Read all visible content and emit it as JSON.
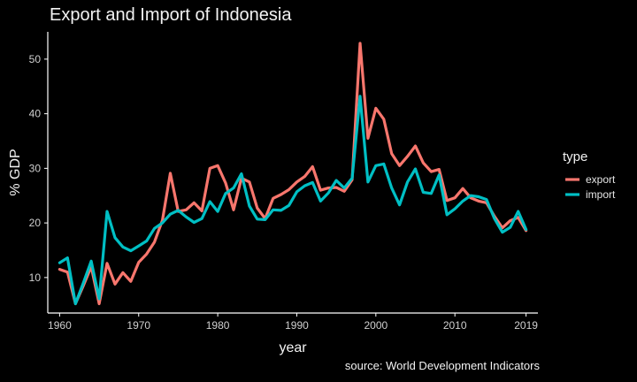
{
  "chart_data": {
    "type": "line",
    "title": "Export and Import of Indonesia",
    "xlabel": "year",
    "ylabel": "% GDP",
    "caption": "source: World Development Indicators",
    "legend_title": "type",
    "legend_position": "right",
    "grid": false,
    "xlim": [
      1958.5,
      2020.5
    ],
    "ylim": [
      3.5,
      55
    ],
    "x_ticks": [
      1960,
      1970,
      1980,
      1990,
      2000,
      2010,
      2019
    ],
    "y_ticks": [
      10,
      20,
      30,
      40,
      50
    ],
    "x": [
      1960,
      1961,
      1962,
      1963,
      1964,
      1965,
      1966,
      1967,
      1968,
      1969,
      1970,
      1971,
      1972,
      1973,
      1974,
      1975,
      1976,
      1977,
      1978,
      1979,
      1980,
      1981,
      1982,
      1983,
      1984,
      1985,
      1986,
      1987,
      1988,
      1989,
      1990,
      1991,
      1992,
      1993,
      1994,
      1995,
      1996,
      1997,
      1998,
      1999,
      2000,
      2001,
      2002,
      2003,
      2004,
      2005,
      2006,
      2007,
      2008,
      2009,
      2010,
      2011,
      2012,
      2013,
      2014,
      2015,
      2016,
      2017,
      2018,
      2019
    ],
    "series": [
      {
        "name": "export",
        "color": "#F8766D",
        "values": [
          11.5,
          11.0,
          5.2,
          8.5,
          12.0,
          5.2,
          12.6,
          8.8,
          10.9,
          9.3,
          12.8,
          14.3,
          16.5,
          20.5,
          29.1,
          22.1,
          22.4,
          23.7,
          22.2,
          30.0,
          30.5,
          27.3,
          22.4,
          28.2,
          27.5,
          22.7,
          20.8,
          24.5,
          25.2,
          26.1,
          27.5,
          28.5,
          30.3,
          26.0,
          26.4,
          26.5,
          25.8,
          27.9,
          52.9,
          35.5,
          41.0,
          39.0,
          32.7,
          30.5,
          32.2,
          34.1,
          31.0,
          29.4,
          29.8,
          24.1,
          24.6,
          26.3,
          24.6,
          24.0,
          23.7,
          21.2,
          19.1,
          20.4,
          21.0,
          18.6
        ]
      },
      {
        "name": "import",
        "color": "#00BFC4",
        "values": [
          12.7,
          13.6,
          5.2,
          9.0,
          13.0,
          6.1,
          22.1,
          17.3,
          15.6,
          14.9,
          15.8,
          16.7,
          19.0,
          20.0,
          21.6,
          22.3,
          21.1,
          20.1,
          20.8,
          23.9,
          22.1,
          25.4,
          26.4,
          29.0,
          23.1,
          20.7,
          20.6,
          22.4,
          22.3,
          23.2,
          25.7,
          26.8,
          27.4,
          24.0,
          25.5,
          27.8,
          26.4,
          28.2,
          43.2,
          27.5,
          30.5,
          30.8,
          26.4,
          23.3,
          27.5,
          29.9,
          25.6,
          25.4,
          28.8,
          21.5,
          22.6,
          24.0,
          25.0,
          24.8,
          24.3,
          20.8,
          18.3,
          19.2,
          22.1,
          18.8
        ]
      }
    ]
  }
}
